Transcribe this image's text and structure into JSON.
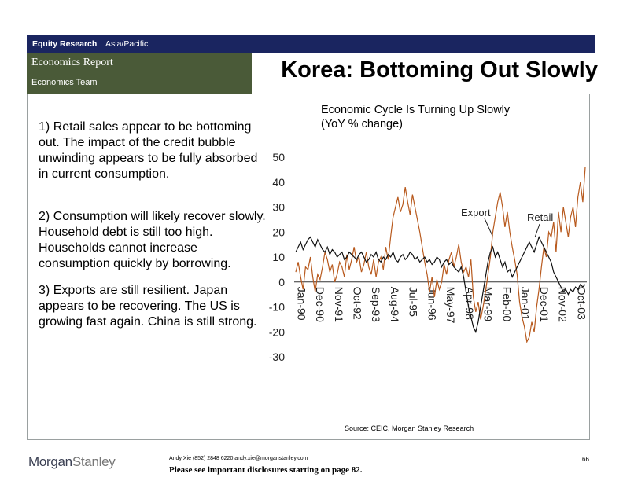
{
  "header": {
    "division": "Equity Research",
    "region": "Asia/Pacific",
    "report_type": "Economics Report",
    "team": "Economics Team",
    "title": "Korea: Bottoming Out Slowly"
  },
  "bullets": [
    {
      "num": "1)",
      "text": "Retail sales appear to be bottoming out.  The impact of the credit bubble unwinding appears to be fully absorbed in current consumption."
    },
    {
      "num": "2)",
      "text": "Consumption will likely recover slowly.  Household debt is still too high.  Households cannot increase consumption quickly by borrowing."
    },
    {
      "num": "3)",
      "text": "Exports are still resilient.  Japan appears to be recovering.  The US is growing fast again.  China is still strong."
    }
  ],
  "chart_title_line1": "Economic Cycle Is Turning Up Slowly",
  "chart_title_line2": "(YoY % change)",
  "chart_data": {
    "type": "line",
    "ylim": [
      -30,
      50
    ],
    "yticks": [
      50,
      40,
      30,
      20,
      10,
      0,
      -10,
      -20,
      -30
    ],
    "xtick_labels": [
      "Jan-90",
      "Dec-90",
      "Nov-91",
      "Oct-92",
      "Sep-93",
      "Aug-94",
      "Jul-95",
      "Jun-96",
      "May-97",
      "Apr-98",
      "Mar-99",
      "Feb-00",
      "Jan-01",
      "Dec-01",
      "Nov-02",
      "Oct-03"
    ],
    "x_range": [
      "Jan-90",
      "Oct-03"
    ],
    "series": [
      {
        "name": "Export",
        "color": "#b85a1e",
        "values": [
          4,
          8,
          2,
          -3,
          6,
          5,
          10,
          2,
          -4,
          3,
          1,
          6,
          12,
          9,
          4,
          7,
          0,
          3,
          8,
          6,
          2,
          11,
          5,
          9,
          14,
          8,
          10,
          4,
          7,
          12,
          6,
          3,
          9,
          2,
          8,
          10,
          5,
          14,
          9,
          18,
          26,
          30,
          34,
          28,
          31,
          38,
          32,
          27,
          35,
          30,
          25,
          20,
          14,
          8,
          3,
          -4,
          2,
          -6,
          1,
          -3,
          0,
          7,
          3,
          9,
          12,
          6,
          10,
          15,
          8,
          4,
          6,
          2,
          9,
          -6,
          -12,
          -8,
          -15,
          -10,
          -4,
          3,
          10,
          20,
          26,
          32,
          36,
          30,
          22,
          28,
          20,
          14,
          9,
          3,
          -8,
          -14,
          -18,
          -24,
          -22,
          -16,
          -20,
          -10,
          -3,
          6,
          14,
          10,
          20,
          18,
          24,
          12,
          28,
          20,
          30,
          24,
          18,
          26,
          30,
          22,
          34,
          40,
          32,
          46
        ]
      },
      {
        "name": "Retail",
        "color": "#111111",
        "values": [
          12,
          14,
          16,
          13,
          15,
          17,
          18,
          16,
          14,
          17,
          15,
          13,
          12,
          14,
          11,
          13,
          12,
          10,
          11,
          12,
          9,
          10,
          12,
          11,
          10,
          9,
          11,
          12,
          10,
          8,
          9,
          11,
          10,
          12,
          9,
          8,
          10,
          9,
          11,
          10,
          12,
          9,
          8,
          10,
          11,
          9,
          10,
          12,
          11,
          9,
          10,
          8,
          9,
          10,
          8,
          9,
          7,
          8,
          10,
          9,
          6,
          8,
          9,
          7,
          8,
          6,
          5,
          4,
          6,
          2,
          -4,
          -10,
          -14,
          -18,
          -20,
          -16,
          -10,
          -4,
          2,
          8,
          12,
          14,
          10,
          12,
          9,
          6,
          8,
          4,
          5,
          2,
          4,
          6,
          8,
          10,
          12,
          14,
          16,
          14,
          12,
          15,
          18,
          16,
          14,
          12,
          10,
          8,
          4,
          2,
          0,
          -2,
          -4,
          -3,
          -5,
          -3,
          -4,
          -2,
          -3,
          -1,
          -2,
          -1
        ]
      }
    ],
    "annotations": [
      "Export",
      "Retail"
    ]
  },
  "source": "Source: CEIC, Morgan Stanley Research",
  "footer": {
    "logo_left": "Morgan",
    "logo_right": "Stanley",
    "contact": "Andy Xie (852) 2848 6220  andy.xie@morganstanley.com",
    "disclaimer": "Please see important disclosures starting on page 82.",
    "page": "66"
  }
}
